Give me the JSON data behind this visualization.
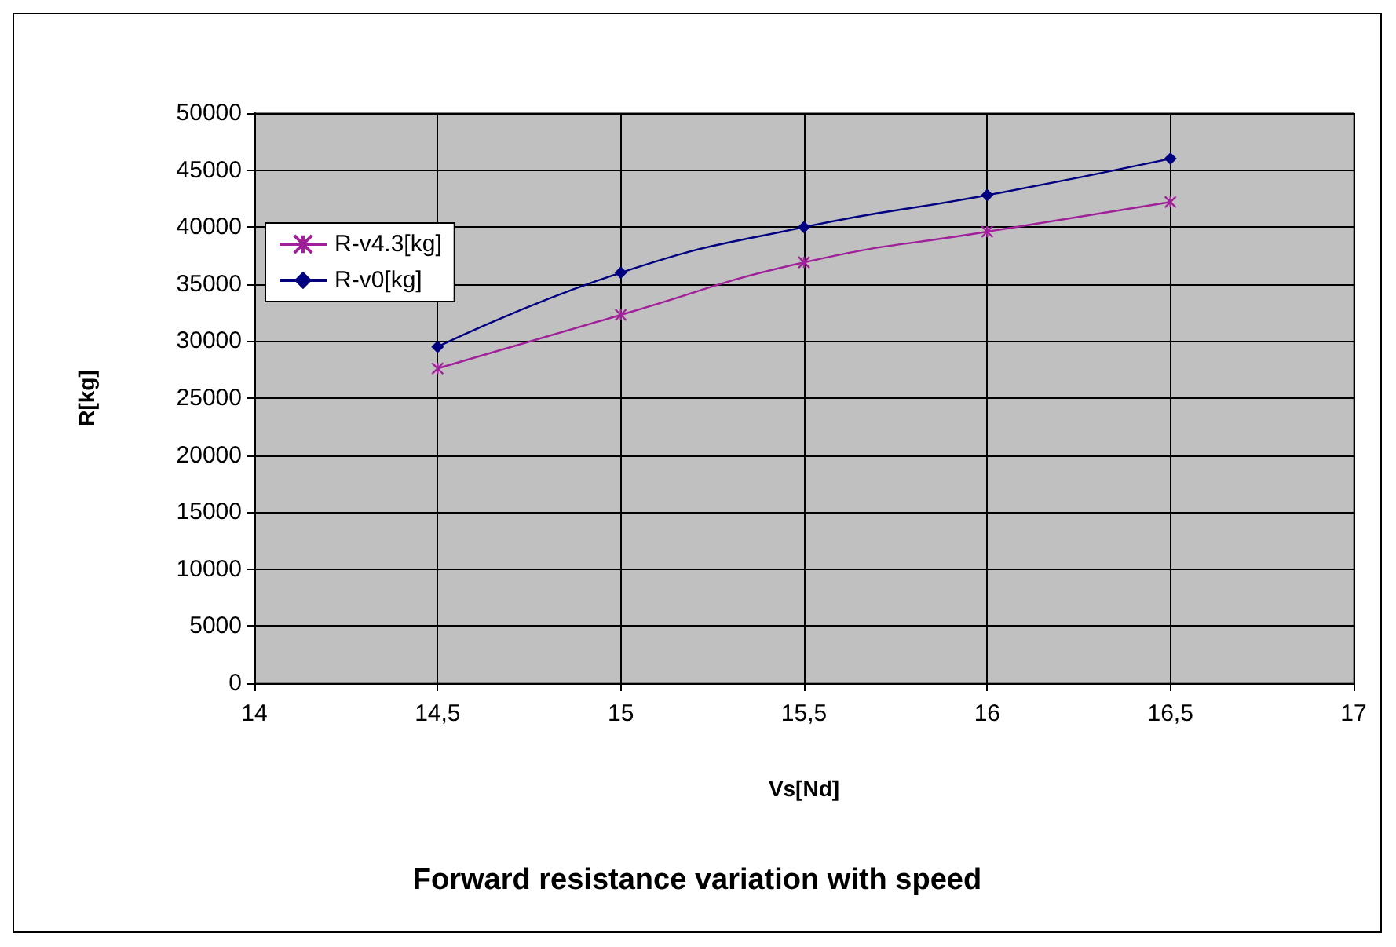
{
  "chart_data": {
    "type": "line",
    "title": "Forward resistance variation with speed",
    "xlabel": "Vs[Nd]",
    "ylabel": "R[kg]",
    "x": [
      14.5,
      15,
      15.5,
      16,
      16.5
    ],
    "xlim": [
      14,
      17
    ],
    "xticks": [
      14,
      {
        "value": 14.5,
        "label": "14,5"
      },
      15,
      {
        "value": 15.5,
        "label": "15,5"
      },
      16,
      {
        "value": 16.5,
        "label": "16,5"
      },
      17
    ],
    "ylim": [
      0,
      50000
    ],
    "yticks": [
      0,
      5000,
      10000,
      15000,
      20000,
      25000,
      30000,
      35000,
      40000,
      45000,
      50000
    ],
    "grid": true,
    "legend": "left",
    "series": [
      {
        "name": "R-v4.3[kg]",
        "color": "#a0209a",
        "marker": "cross",
        "values": [
          27600,
          32300,
          36900,
          39600,
          42200
        ]
      },
      {
        "name": "R-v0[kg]",
        "color": "#000080",
        "marker": "diamond",
        "values": [
          29500,
          36000,
          40000,
          42800,
          46000
        ]
      }
    ]
  }
}
